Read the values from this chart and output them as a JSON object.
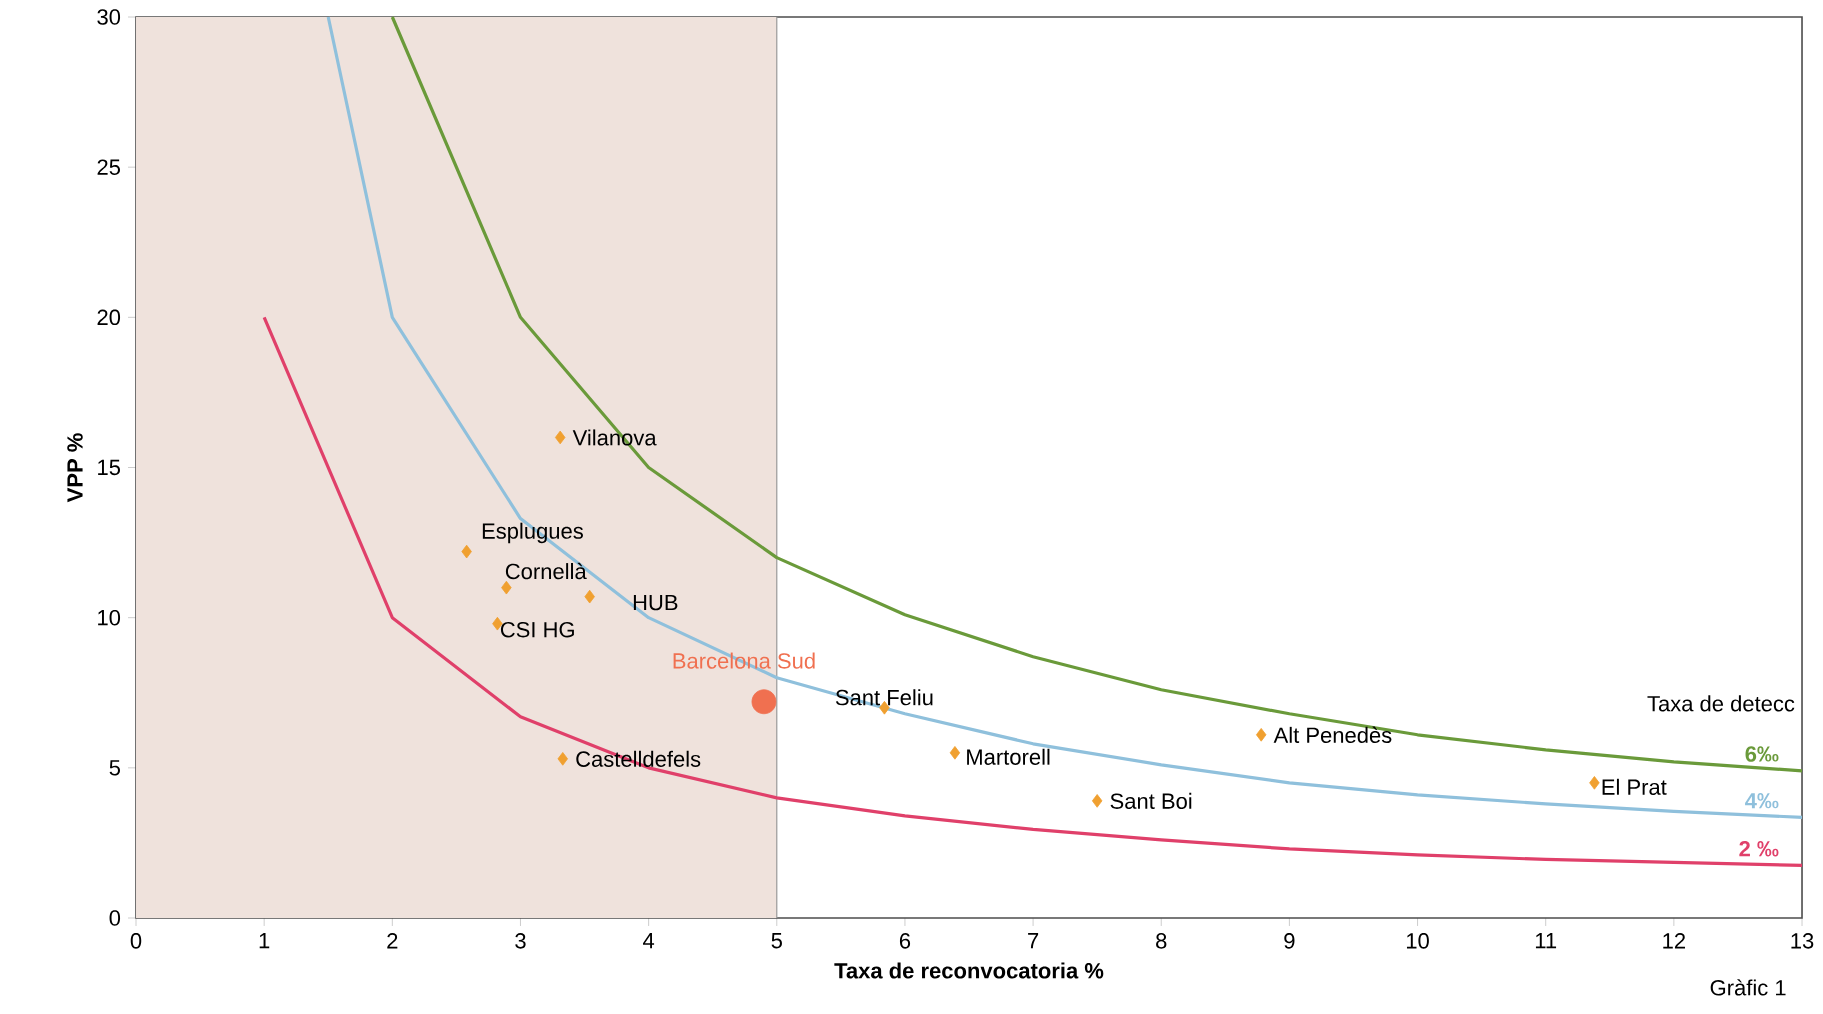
{
  "chart_data": {
    "type": "scatter",
    "xlabel": "Taxa de reconvocatoria %",
    "ylabel": "VPP %",
    "legend_title": "Taxa de detecc",
    "xlim": [
      0,
      13
    ],
    "ylim": [
      0,
      30
    ],
    "xticks": [
      0,
      1,
      2,
      3,
      4,
      5,
      6,
      7,
      8,
      9,
      10,
      11,
      12,
      13
    ],
    "yticks": [
      0,
      5,
      10,
      15,
      20,
      25,
      30
    ],
    "bands": [
      {
        "axis": "x",
        "from": 0,
        "to": 5,
        "color": "#efe2dc"
      }
    ],
    "series": [
      {
        "name": "2 ‰",
        "type": "line",
        "color": "#e0406a",
        "marker": "none",
        "x": [
          1,
          2,
          3,
          4,
          5,
          6,
          7,
          8,
          9,
          10,
          11,
          12,
          13
        ],
        "values": [
          20,
          10,
          6.7,
          5,
          4,
          3.4,
          2.95,
          2.6,
          2.3,
          2.1,
          1.95,
          1.85,
          1.75
        ]
      },
      {
        "name": "4‰",
        "type": "line",
        "color": "#8fc0dc",
        "marker": "none",
        "x": [
          1.5,
          2,
          3,
          4,
          5,
          6,
          7,
          8,
          9,
          10,
          11,
          12,
          13
        ],
        "values": [
          30,
          20,
          13.3,
          10,
          8,
          6.8,
          5.8,
          5.1,
          4.5,
          4.1,
          3.8,
          3.55,
          3.35
        ]
      },
      {
        "name": "6‰",
        "type": "line",
        "color": "#6a9a3a",
        "marker": "none",
        "x": [
          2,
          3,
          4,
          5,
          6,
          7,
          8,
          9,
          10,
          11,
          12,
          13
        ],
        "values": [
          30,
          20,
          15,
          12,
          10.1,
          8.7,
          7.6,
          6.8,
          6.1,
          5.6,
          5.2,
          4.9
        ]
      },
      {
        "color": "#f0a030",
        "marker": "diamond",
        "x": [
          3.31,
          2.58,
          2.89,
          3.54,
          2.82,
          5.84,
          3.33,
          6.39,
          7.5,
          8.78,
          11.38
        ],
        "values": [
          16,
          12.2,
          11,
          10.7,
          9.8,
          7,
          5.3,
          5.5,
          3.9,
          6.1,
          4.5
        ]
      },
      {
        "name": "Barcelona Sud",
        "color": "#f07050",
        "marker": "circle",
        "x": [
          4.9
        ],
        "values": [
          7.2
        ]
      }
    ],
    "annotations": [
      {
        "text": "Vilanova",
        "x": 3.31,
        "y": 16
      },
      {
        "text": "Esplugues",
        "x": 2.58,
        "y": 12.2
      },
      {
        "text": "Cornellà",
        "x": 2.89,
        "y": 11
      },
      {
        "text": "HUB",
        "x": 3.54,
        "y": 10.7
      },
      {
        "text": "CSI HG",
        "x": 2.82,
        "y": 9.8
      },
      {
        "text": "Sant Feliu",
        "x": 5.84,
        "y": 7
      },
      {
        "text": "Castelldefels",
        "x": 3.33,
        "y": 5.3
      },
      {
        "text": "Martorell",
        "x": 6.39,
        "y": 5.5
      },
      {
        "text": "Sant Boi",
        "x": 7.5,
        "y": 3.9
      },
      {
        "text": "Alt Penedès",
        "x": 8.78,
        "y": 6.1
      },
      {
        "text": "El Prat",
        "x": 11.38,
        "y": 4.5
      },
      "Gràfic 1"
    ]
  }
}
